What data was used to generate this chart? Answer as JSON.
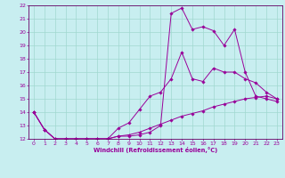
{
  "xlabel": "Windchill (Refroidissement éolien,°C)",
  "bg_color": "#c8eef0",
  "grid_color": "#a0d8d0",
  "line_color": "#990099",
  "xlim": [
    -0.5,
    23.5
  ],
  "ylim": [
    12,
    22
  ],
  "yticks": [
    12,
    13,
    14,
    15,
    16,
    17,
    18,
    19,
    20,
    21,
    22
  ],
  "xticks": [
    0,
    1,
    2,
    3,
    4,
    5,
    6,
    7,
    8,
    9,
    10,
    11,
    12,
    13,
    14,
    15,
    16,
    17,
    18,
    19,
    20,
    21,
    22,
    23
  ],
  "line1_x": [
    0,
    1,
    2,
    3,
    4,
    5,
    6,
    7,
    8,
    9,
    10,
    11,
    12,
    13,
    14,
    15,
    16,
    17,
    18,
    19,
    20,
    21,
    22,
    23
  ],
  "line1_y": [
    14,
    12.7,
    12.0,
    12.0,
    12.0,
    12.0,
    12.0,
    12.0,
    12.2,
    12.2,
    12.3,
    12.5,
    13.0,
    21.4,
    21.8,
    20.2,
    20.4,
    20.1,
    19.0,
    20.2,
    17.0,
    15.2,
    15.0,
    14.8
  ],
  "line2_x": [
    0,
    1,
    2,
    3,
    4,
    5,
    6,
    7,
    8,
    9,
    10,
    11,
    12,
    13,
    14,
    15,
    16,
    17,
    18,
    19,
    20,
    21,
    22,
    23
  ],
  "line2_y": [
    14,
    12.7,
    12.0,
    12.0,
    12.0,
    12.0,
    12.0,
    12.0,
    12.8,
    13.2,
    14.2,
    15.2,
    15.5,
    16.5,
    18.5,
    16.5,
    16.3,
    17.3,
    17.0,
    17.0,
    16.5,
    16.2,
    15.5,
    15.0
  ],
  "line3_x": [
    0,
    1,
    2,
    3,
    4,
    5,
    6,
    7,
    8,
    9,
    10,
    11,
    12,
    13,
    14,
    15,
    16,
    17,
    18,
    19,
    20,
    21,
    22,
    23
  ],
  "line3_y": [
    14,
    12.7,
    12.0,
    12.0,
    12.0,
    12.0,
    12.0,
    12.0,
    12.2,
    12.3,
    12.5,
    12.8,
    13.1,
    13.4,
    13.7,
    13.9,
    14.1,
    14.4,
    14.6,
    14.8,
    15.0,
    15.1,
    15.2,
    15.0
  ]
}
